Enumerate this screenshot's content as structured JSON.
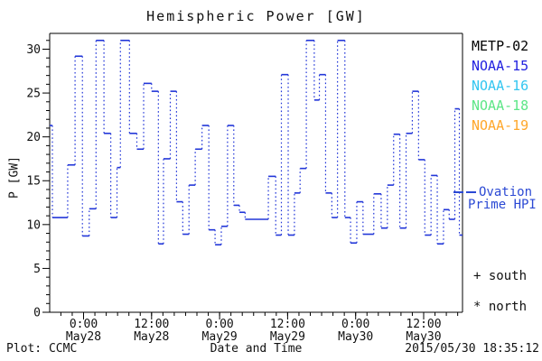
{
  "chart_data": {
    "type": "step-line",
    "title": "Hemispheric Power [GW]",
    "xlabel": "Date and Time",
    "ylabel": "P [GW]",
    "ylim": [
      0,
      31.8
    ],
    "yticks": [
      0,
      5,
      10,
      15,
      20,
      25,
      30
    ],
    "y_minor_step": 1,
    "x_unit": "hours",
    "x_range": [
      0,
      72.9
    ],
    "x_minor_step": 2,
    "xticks": [
      {
        "t": 6,
        "time": "0:00",
        "date": "May28"
      },
      {
        "t": 18,
        "time": "12:00",
        "date": "May28"
      },
      {
        "t": 30,
        "time": "0:00",
        "date": "May29"
      },
      {
        "t": 42,
        "time": "12:00",
        "date": "May29"
      },
      {
        "t": 54,
        "time": "0:00",
        "date": "May30"
      },
      {
        "t": 66,
        "time": "12:00",
        "date": "May30"
      }
    ],
    "grid": false,
    "legend_position": "right",
    "series": [
      {
        "name": "Ovation Prime HPI",
        "color": "#2236d8",
        "style": "steps-dotted-risers",
        "points": [
          [
            0,
            21.3
          ],
          [
            0.5,
            10.8
          ],
          [
            3.2,
            16.8
          ],
          [
            4.5,
            29.2
          ],
          [
            5.8,
            8.7
          ],
          [
            7,
            11.8
          ],
          [
            8.2,
            31
          ],
          [
            9.6,
            20.4
          ],
          [
            10.8,
            10.8
          ],
          [
            11.9,
            16.5
          ],
          [
            12.5,
            31
          ],
          [
            14.1,
            20.4
          ],
          [
            15.4,
            18.6
          ],
          [
            16.6,
            26.1
          ],
          [
            18,
            25.2
          ],
          [
            19.2,
            7.8
          ],
          [
            20.1,
            17.5
          ],
          [
            21.3,
            25.2
          ],
          [
            22.4,
            12.6
          ],
          [
            23.5,
            8.9
          ],
          [
            24.6,
            14.5
          ],
          [
            25.7,
            18.6
          ],
          [
            26.9,
            21.3
          ],
          [
            28.1,
            9.4
          ],
          [
            29.2,
            7.7
          ],
          [
            30.3,
            9.8
          ],
          [
            31.4,
            21.3
          ],
          [
            32.5,
            12.2
          ],
          [
            33.5,
            11.4
          ],
          [
            34.5,
            10.6
          ],
          [
            38.6,
            15.5
          ],
          [
            39.9,
            8.8
          ],
          [
            40.9,
            27.1
          ],
          [
            42.1,
            8.8
          ],
          [
            43.2,
            13.6
          ],
          [
            44.2,
            16.4
          ],
          [
            45.3,
            31
          ],
          [
            46.7,
            24.2
          ],
          [
            47.6,
            27.1
          ],
          [
            48.7,
            13.6
          ],
          [
            49.8,
            10.8
          ],
          [
            50.8,
            31
          ],
          [
            52.1,
            10.8
          ],
          [
            53.1,
            7.9
          ],
          [
            54.2,
            12.6
          ],
          [
            55.3,
            8.9
          ],
          [
            57.2,
            13.5
          ],
          [
            58.5,
            9.6
          ],
          [
            59.6,
            14.5
          ],
          [
            60.7,
            20.3
          ],
          [
            61.8,
            9.6
          ],
          [
            62.9,
            20.4
          ],
          [
            64,
            25.2
          ],
          [
            65.1,
            17.4
          ],
          [
            66.2,
            8.8
          ],
          [
            67.3,
            15.6
          ],
          [
            68.4,
            7.8
          ],
          [
            69.5,
            11.7
          ],
          [
            70.5,
            10.6
          ],
          [
            71.5,
            23.2
          ],
          [
            72.3,
            8.8
          ]
        ]
      }
    ]
  },
  "legend": {
    "satellites": [
      {
        "label": "METP-02",
        "color": "#000000"
      },
      {
        "label": "NOAA-15",
        "color": "#2222e0"
      },
      {
        "label": "NOAA-16",
        "color": "#33c6f0"
      },
      {
        "label": "NOAA-18",
        "color": "#5ce687"
      },
      {
        "label": "NOAA-19",
        "color": "#ffa72b"
      }
    ],
    "ovation": {
      "label_line1": "Ovation",
      "label_line2": "Prime HPI",
      "color": "#2b49d4"
    },
    "south_marker": "+ south",
    "north_marker": "* north"
  },
  "footer": {
    "credit": "Plot: CCMC",
    "timestamp": "2015/05/30 18:35:12"
  }
}
